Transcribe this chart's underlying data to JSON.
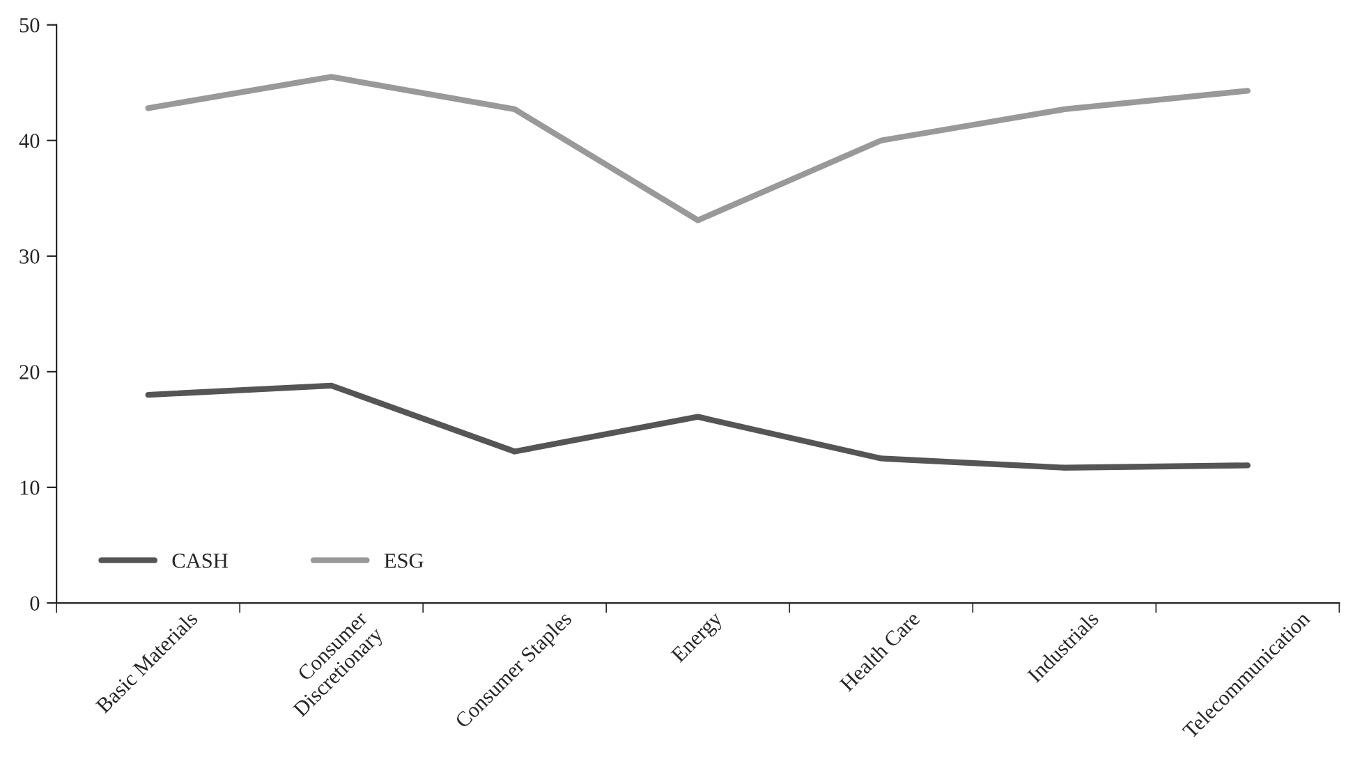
{
  "chart_data": {
    "type": "line",
    "categories": [
      "Basic Materials",
      "Consumer\nDiscretionary",
      "Consumer Staples",
      "Energy",
      "Health Care",
      "Industrials",
      "Telecommunication"
    ],
    "series": [
      {
        "name": "CASH",
        "color": "#555555",
        "values": [
          18.0,
          18.8,
          13.1,
          16.1,
          12.5,
          11.7,
          11.9
        ]
      },
      {
        "name": "ESG",
        "color": "#999999",
        "values": [
          42.8,
          45.5,
          42.7,
          33.1,
          40.0,
          42.7,
          44.3
        ]
      }
    ],
    "ylim": [
      0,
      50
    ],
    "yticks": [
      0,
      10,
      20,
      30,
      40,
      50
    ],
    "grid": false,
    "legend": "bottom left",
    "marker": "none",
    "line_style": "solid"
  }
}
